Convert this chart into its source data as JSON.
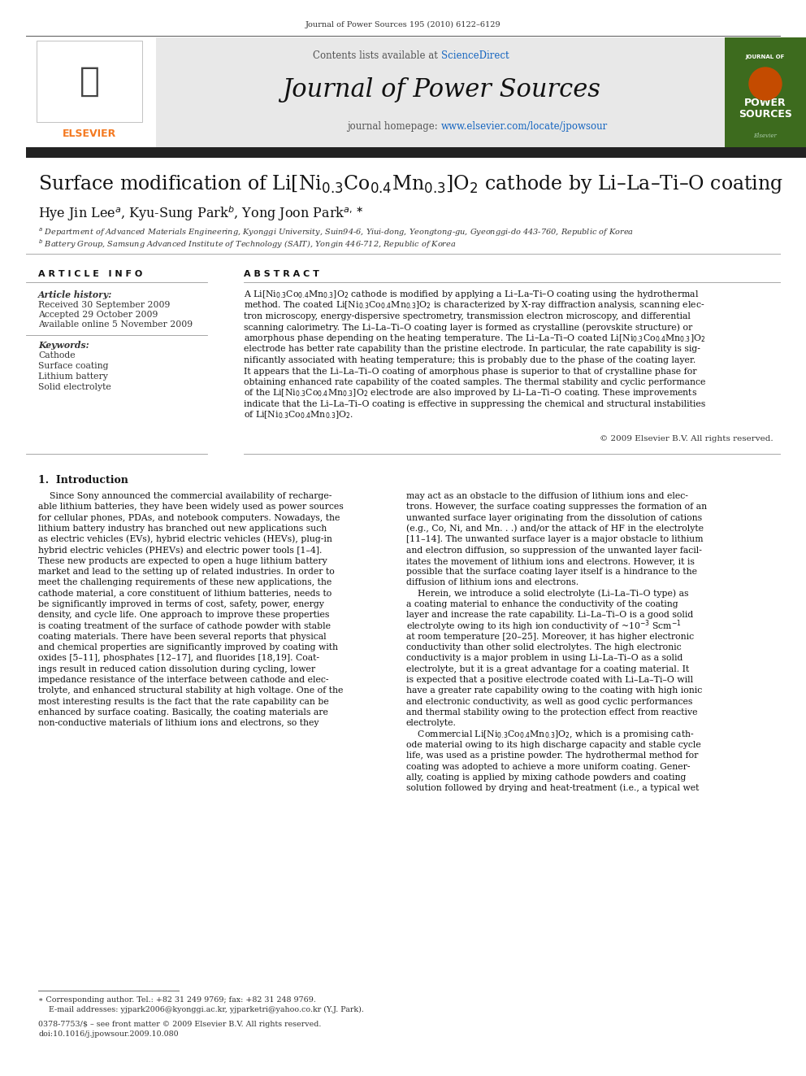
{
  "journal_ref": "Journal of Power Sources 195 (2010) 6122–6129",
  "contents_line_pre": "Contents lists available at ",
  "contents_link": "ScienceDirect",
  "journal_name": "Journal of Power Sources",
  "homepage_pre": "journal homepage: ",
  "homepage_url": "www.elsevier.com/locate/jpowsour",
  "title_tex": "Surface modification of Li[Ni$_{0.3}$Co$_{0.4}$Mn$_{0.3}$]O$_2$ cathode by Li–La–Ti–O coating",
  "authors_tex": "Hye Jin Lee$^{a}$, Kyu-Sung Park$^{b}$, Yong Joon Park$^{a,\\ast}$",
  "affil_a": "$^{a}$ Department of Advanced Materials Engineering, Kyonggi University, Suin94-6, Yiui-dong, Yeongtong-gu, Gyeonggi-do 443-760, Republic of Korea",
  "affil_b": "$^{b}$ Battery Group, Samsung Advanced Institute of Technology (SAIT), Yongin 446-712, Republic of Korea",
  "art_info_hdr": "A R T I C L E   I N F O",
  "abstract_hdr": "A B S T R A C T",
  "hist_label": "Article history:",
  "received": "Received 30 September 2009",
  "accepted": "Accepted 29 October 2009",
  "available": "Available online 5 November 2009",
  "kw_label": "Keywords:",
  "keywords": [
    "Cathode",
    "Surface coating",
    "Lithium battery",
    "Solid electrolyte"
  ],
  "copyright": "© 2009 Elsevier B.V. All rights reserved.",
  "section1": "1.  Introduction",
  "footnote1": "∗ Corresponding author. Tel.: +82 31 249 9769; fax: +82 31 248 9769.",
  "footnote2": "E-mail addresses: yjpark2006@kyonggi.ac.kr, yjparketri@yahoo.co.kr (Y.J. Park).",
  "issn1": "0378-7753/$ – see front matter © 2009 Elsevier B.V. All rights reserved.",
  "issn2": "doi:10.1016/j.jpowsour.2009.10.080",
  "bg": "#ffffff",
  "gray_bg": "#e8e8e8",
  "orange": "#f47920",
  "sd_blue": "#1565c0",
  "link_blue": "#1565c0",
  "dark": "#1a1a1a",
  "text_dark": "#111111",
  "text_gray": "#444444"
}
